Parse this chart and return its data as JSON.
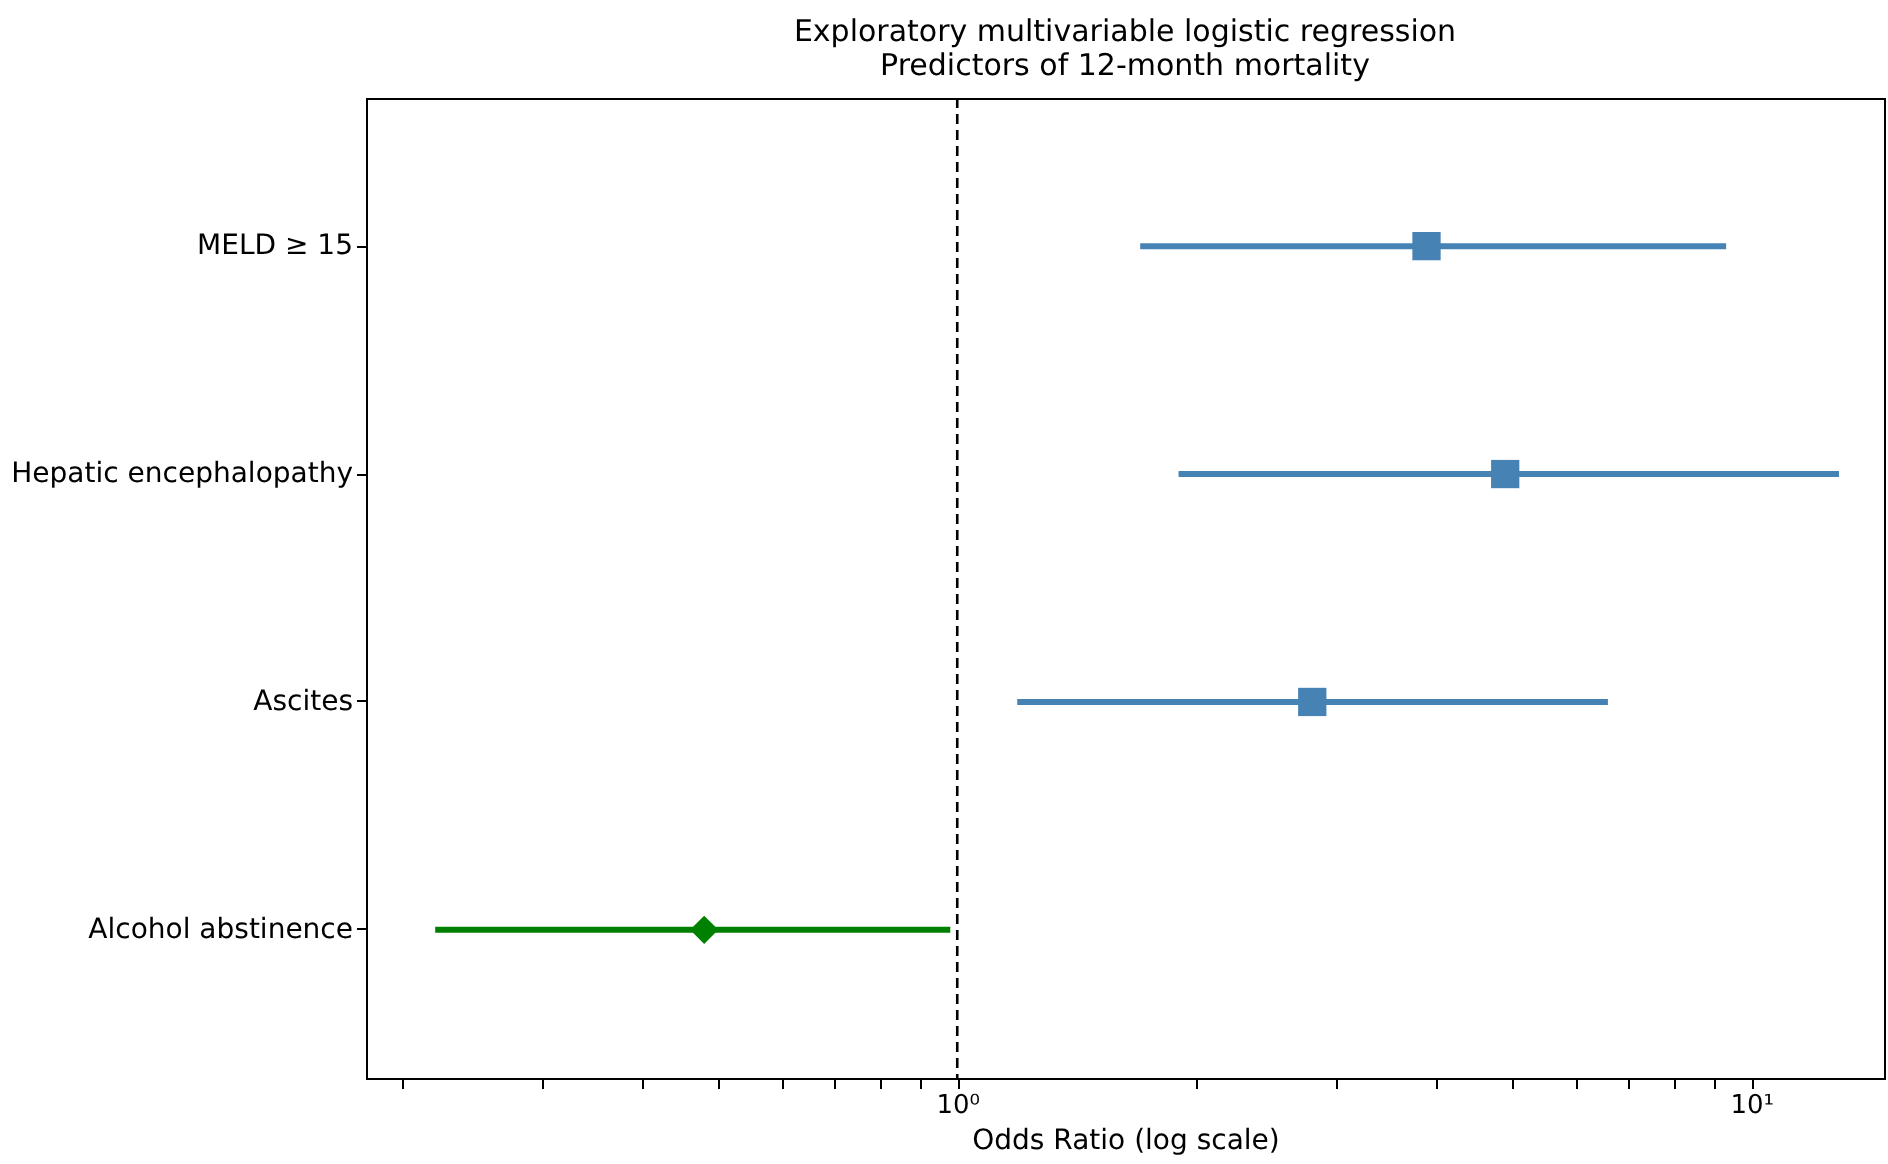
{
  "chart_data": {
    "type": "scatter",
    "orientation": "horizontal",
    "title": "Exploratory multivariable logistic regression\nPredictors of 12-month mortality",
    "xlabel": "Odds Ratio (log scale)",
    "categories": [
      "MELD ≥ 15",
      "Hepatic encephalopathy",
      "Ascites",
      "Alcohol abstinence"
    ],
    "series": [
      {
        "color": "#4682b4",
        "marker": "square",
        "values": [
          3.9,
          4.9,
          2.8,
          null
        ],
        "errors": [
          [
            1.7,
            9.3
          ],
          [
            1.9,
            12.9
          ],
          [
            1.19,
            6.6
          ],
          null
        ]
      },
      {
        "color": "#008000",
        "marker": "diamond",
        "values": [
          null,
          null,
          null,
          0.48
        ],
        "errors": [
          null,
          null,
          null,
          [
            0.22,
            0.98
          ]
        ]
      }
    ],
    "log": "x",
    "xlim": [
      0.18,
      14.7
    ],
    "xticks": [
      {
        "value": 0.2,
        "label": null
      },
      {
        "value": 0.3,
        "label": null
      },
      {
        "value": 0.4,
        "label": null
      },
      {
        "value": 0.5,
        "label": null
      },
      {
        "value": 0.6,
        "label": null
      },
      {
        "value": 0.7,
        "label": null
      },
      {
        "value": 0.8,
        "label": null
      },
      {
        "value": 0.9,
        "label": null
      },
      {
        "value": 1,
        "label": "10⁰"
      },
      {
        "value": 2,
        "label": null
      },
      {
        "value": 3,
        "label": null
      },
      {
        "value": 4,
        "label": null
      },
      {
        "value": 5,
        "label": null
      },
      {
        "value": 6,
        "label": null
      },
      {
        "value": 7,
        "label": null
      },
      {
        "value": 8,
        "label": null
      },
      {
        "value": 9,
        "label": null
      },
      {
        "value": 10,
        "label": "10¹"
      }
    ],
    "ref_lines": [
      {
        "axis": "x",
        "value": 1,
        "color": "#000000",
        "line_style": "dashed"
      }
    ]
  }
}
